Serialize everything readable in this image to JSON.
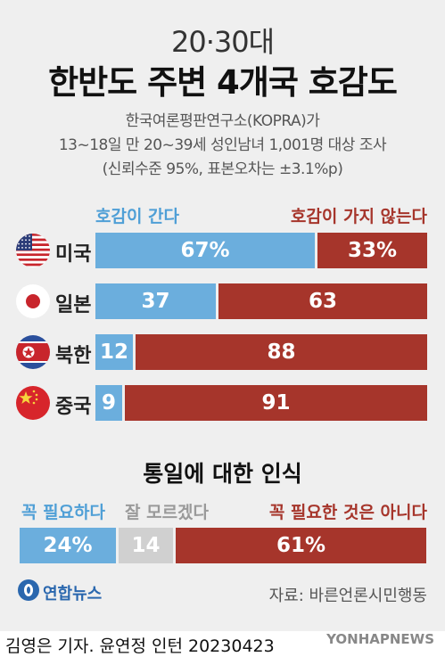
{
  "header": {
    "kicker": "20·30대",
    "title": "한반도 주변 4개국 호감도",
    "info_lines": [
      "한국여론평판연구소(KOPRA)가",
      "13~18일 만 20~39세 성인남녀 1,001명 대상 조사",
      "(신뢰수준 95%, 표본오차는 ±3.1%p)"
    ]
  },
  "legend": {
    "positive": "호감이 간다",
    "negative": "호감이 가지 않는다"
  },
  "colors": {
    "positive": "#6baedd",
    "negative": "#a6352b",
    "neutral": "#d0d0d0",
    "background": "#efefef"
  },
  "chart_data": [
    {
      "type": "bar",
      "orientation": "horizontal-stacked",
      "categories": [
        "미국",
        "일본",
        "북한",
        "중국"
      ],
      "flags": [
        "usa-flag-icon",
        "japan-flag-icon",
        "north-korea-flag-icon",
        "china-flag-icon"
      ],
      "series": [
        {
          "name": "호감이 간다",
          "values": [
            67,
            37,
            12,
            9
          ],
          "labels": [
            "67%",
            "37",
            "12",
            "9"
          ]
        },
        {
          "name": "호감이 가지 않는다",
          "values": [
            33,
            63,
            88,
            91
          ],
          "labels": [
            "33%",
            "63",
            "88",
            "91"
          ]
        }
      ]
    },
    {
      "type": "bar",
      "orientation": "horizontal-stacked",
      "title": "통일에 대한 인식",
      "categories": [
        ""
      ],
      "series": [
        {
          "name": "꼭 필요하다",
          "values": [
            24
          ],
          "labels": [
            "24%"
          ]
        },
        {
          "name": "잘 모르겠다",
          "values": [
            14
          ],
          "labels": [
            "14"
          ]
        },
        {
          "name": "꼭 필요한 것은 아니다",
          "values": [
            61
          ],
          "labels": [
            "61%"
          ]
        }
      ]
    }
  ],
  "footer": {
    "logo": "연합뉴스",
    "source": "자료: 바른언론시민행동",
    "credit": "김영은 기자. 윤연정 인턴  20230423",
    "watermark": "YONHAPNEWS"
  }
}
